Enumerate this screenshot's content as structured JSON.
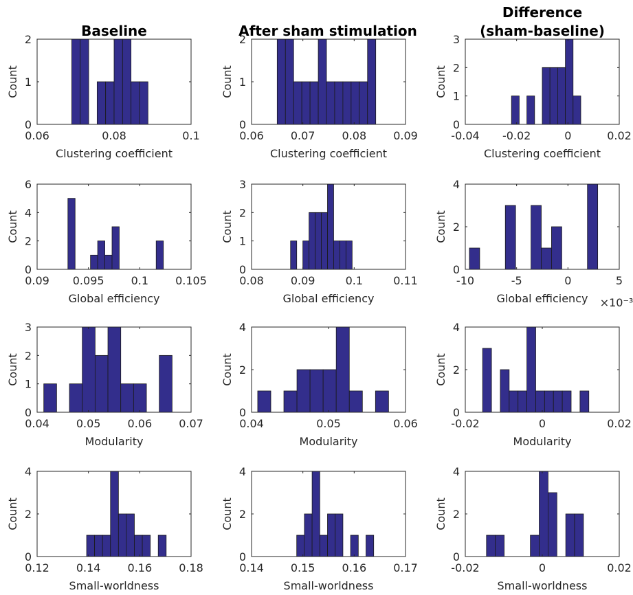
{
  "figure": {
    "bar_color": "#332e8c",
    "titles": [
      "Baseline",
      "After sham stimulation",
      "Difference",
      "(sham-baseline)"
    ]
  },
  "chart_data": [
    {
      "type": "bar",
      "row": 0,
      "col": 0,
      "xlabel": "Clustering coefficient",
      "ylabel": "Count",
      "xlim": [
        0.06,
        0.1
      ],
      "ylim": [
        0,
        2
      ],
      "xticks": [
        "0.06",
        "0.08",
        "0.1"
      ],
      "yticks": [
        "0",
        "1",
        "2"
      ],
      "bins": [
        [
          0.069,
          0.0712,
          2
        ],
        [
          0.0712,
          0.0734,
          2
        ],
        [
          0.0756,
          0.0778,
          1
        ],
        [
          0.0778,
          0.08,
          1
        ],
        [
          0.08,
          0.0822,
          2
        ],
        [
          0.0822,
          0.0844,
          2
        ],
        [
          0.0844,
          0.0866,
          1
        ],
        [
          0.0866,
          0.0888,
          1
        ]
      ]
    },
    {
      "type": "bar",
      "row": 0,
      "col": 1,
      "xlabel": "Clustering coefficient",
      "ylabel": "Count",
      "xlim": [
        0.06,
        0.09
      ],
      "ylim": [
        0,
        2
      ],
      "xticks": [
        "0.06",
        "0.07",
        "0.08",
        "0.09"
      ],
      "yticks": [
        "0",
        "1",
        "2"
      ],
      "bins": [
        [
          0.065,
          0.0666,
          2
        ],
        [
          0.0666,
          0.0682,
          2
        ],
        [
          0.0682,
          0.0698,
          1
        ],
        [
          0.0698,
          0.0714,
          1
        ],
        [
          0.0714,
          0.073,
          1
        ],
        [
          0.073,
          0.0746,
          2
        ],
        [
          0.0746,
          0.0762,
          1
        ],
        [
          0.0762,
          0.0778,
          1
        ],
        [
          0.0778,
          0.0794,
          1
        ],
        [
          0.0794,
          0.081,
          1
        ],
        [
          0.081,
          0.0826,
          1
        ],
        [
          0.0826,
          0.0842,
          2
        ]
      ]
    },
    {
      "type": "bar",
      "row": 0,
      "col": 2,
      "xlabel": "Clustering coefficient",
      "ylabel": "Count",
      "xlim": [
        -0.04,
        0.02
      ],
      "ylim": [
        0,
        3
      ],
      "xticks": [
        "-0.04",
        "-0.02",
        "0",
        "0.02"
      ],
      "yticks": [
        "0",
        "1",
        "2",
        "3"
      ],
      "bins": [
        [
          -0.022,
          -0.019,
          1
        ],
        [
          -0.016,
          -0.013,
          1
        ],
        [
          -0.01,
          -0.007,
          2
        ],
        [
          -0.007,
          -0.004,
          2
        ],
        [
          -0.004,
          -0.001,
          2
        ],
        [
          -0.001,
          0.002,
          3
        ],
        [
          0.002,
          0.005,
          1
        ]
      ]
    },
    {
      "type": "bar",
      "row": 1,
      "col": 0,
      "xlabel": "Global efficiency",
      "ylabel": "Count",
      "xlim": [
        0.09,
        0.105
      ],
      "ylim": [
        0,
        6
      ],
      "xticks": [
        "0.09",
        "0.095",
        "0.1",
        "0.105"
      ],
      "yticks": [
        "0",
        "2",
        "4",
        "6"
      ],
      "bins": [
        [
          0.093,
          0.0937,
          5
        ],
        [
          0.0952,
          0.0959,
          1
        ],
        [
          0.0959,
          0.0966,
          2
        ],
        [
          0.0966,
          0.0973,
          1
        ],
        [
          0.0973,
          0.098,
          3
        ],
        [
          0.1016,
          0.1023,
          2
        ]
      ]
    },
    {
      "type": "bar",
      "row": 1,
      "col": 1,
      "xlabel": "Global efficiency",
      "ylabel": "Count",
      "xlim": [
        0.08,
        0.11
      ],
      "ylim": [
        0,
        3
      ],
      "xticks": [
        "0.08",
        "0.09",
        "0.1",
        "0.11"
      ],
      "yticks": [
        "0",
        "1",
        "2",
        "3"
      ],
      "bins": [
        [
          0.0876,
          0.0888,
          1
        ],
        [
          0.09,
          0.0912,
          1
        ],
        [
          0.0912,
          0.0924,
          2
        ],
        [
          0.0924,
          0.0936,
          2
        ],
        [
          0.0936,
          0.0948,
          2
        ],
        [
          0.0948,
          0.096,
          3
        ],
        [
          0.096,
          0.0972,
          1
        ],
        [
          0.0972,
          0.0984,
          1
        ],
        [
          0.0984,
          0.0996,
          1
        ]
      ]
    },
    {
      "type": "bar",
      "row": 1,
      "col": 2,
      "xlabel": "Global efficiency",
      "ylabel": "Count",
      "xlim": [
        -10,
        5
      ],
      "ylim": [
        0,
        4
      ],
      "xticks": [
        "-10",
        "-5",
        "0",
        "5"
      ],
      "yticks": [
        "0",
        "2",
        "4"
      ],
      "exponent": "×10⁻³",
      "bins": [
        [
          -9.6,
          -8.6,
          1
        ],
        [
          -6.1,
          -5.1,
          3
        ],
        [
          -3.6,
          -2.6,
          3
        ],
        [
          -2.6,
          -1.6,
          1
        ],
        [
          -1.6,
          -0.6,
          2
        ],
        [
          1.9,
          2.9,
          4
        ]
      ]
    },
    {
      "type": "bar",
      "row": 2,
      "col": 0,
      "xlabel": "Modularity",
      "ylabel": "Count",
      "xlim": [
        0.04,
        0.07
      ],
      "ylim": [
        0,
        3
      ],
      "xticks": [
        "0.04",
        "0.05",
        "0.06",
        "0.07"
      ],
      "yticks": [
        "0",
        "1",
        "2",
        "3"
      ],
      "bins": [
        [
          0.0413,
          0.0438,
          1
        ],
        [
          0.0463,
          0.0488,
          1
        ],
        [
          0.0488,
          0.0513,
          3
        ],
        [
          0.0513,
          0.0538,
          2
        ],
        [
          0.0538,
          0.0563,
          3
        ],
        [
          0.0563,
          0.0588,
          1
        ],
        [
          0.0588,
          0.0613,
          1
        ],
        [
          0.0638,
          0.0663,
          2
        ]
      ]
    },
    {
      "type": "bar",
      "row": 2,
      "col": 1,
      "xlabel": "Modularity",
      "ylabel": "Count",
      "xlim": [
        0.04,
        0.06
      ],
      "ylim": [
        0,
        4
      ],
      "xticks": [
        "0.04",
        "0.05",
        "0.06"
      ],
      "yticks": [
        "0",
        "2",
        "4"
      ],
      "bins": [
        [
          0.0408,
          0.0425,
          1
        ],
        [
          0.0442,
          0.0459,
          1
        ],
        [
          0.0459,
          0.0476,
          2
        ],
        [
          0.0476,
          0.0493,
          2
        ],
        [
          0.0493,
          0.051,
          2
        ],
        [
          0.051,
          0.0527,
          4
        ],
        [
          0.0527,
          0.0544,
          1
        ],
        [
          0.0561,
          0.0578,
          1
        ]
      ]
    },
    {
      "type": "bar",
      "row": 2,
      "col": 2,
      "xlabel": "Modularity",
      "ylabel": "Count",
      "xlim": [
        -0.02,
        0.02
      ],
      "ylim": [
        0,
        4
      ],
      "xticks": [
        "-0.02",
        "0",
        "0.02"
      ],
      "yticks": [
        "0",
        "2",
        "4"
      ],
      "bins": [
        [
          -0.0155,
          -0.0132,
          3
        ],
        [
          -0.0109,
          -0.0086,
          2
        ],
        [
          -0.0086,
          -0.0063,
          1
        ],
        [
          -0.0063,
          -0.004,
          1
        ],
        [
          -0.004,
          -0.0017,
          4
        ],
        [
          -0.0017,
          0.0006,
          1
        ],
        [
          0.0006,
          0.0029,
          1
        ],
        [
          0.0029,
          0.0052,
          1
        ],
        [
          0.0052,
          0.0075,
          1
        ],
        [
          0.0098,
          0.0121,
          1
        ]
      ]
    },
    {
      "type": "bar",
      "row": 3,
      "col": 0,
      "xlabel": "Small-worldness",
      "ylabel": "Count",
      "xlim": [
        0.12,
        0.18
      ],
      "ylim": [
        0,
        4
      ],
      "xticks": [
        "0.12",
        "0.14",
        "0.16",
        "0.18"
      ],
      "yticks": [
        "0",
        "2",
        "4"
      ],
      "bins": [
        [
          0.1393,
          0.1424,
          1
        ],
        [
          0.1424,
          0.1455,
          1
        ],
        [
          0.1455,
          0.1486,
          1
        ],
        [
          0.1486,
          0.1517,
          4
        ],
        [
          0.1517,
          0.1548,
          2
        ],
        [
          0.1548,
          0.1579,
          2
        ],
        [
          0.1579,
          0.161,
          1
        ],
        [
          0.161,
          0.1641,
          1
        ],
        [
          0.1672,
          0.1703,
          1
        ]
      ]
    },
    {
      "type": "bar",
      "row": 3,
      "col": 1,
      "xlabel": "Small-worldness",
      "ylabel": "Count",
      "xlim": [
        0.14,
        0.17
      ],
      "ylim": [
        0,
        4
      ],
      "xticks": [
        "0.14",
        "0.15",
        "0.16",
        "0.17"
      ],
      "yticks": [
        "0",
        "2",
        "4"
      ],
      "bins": [
        [
          0.1488,
          0.1503,
          1
        ],
        [
          0.1503,
          0.1518,
          2
        ],
        [
          0.1518,
          0.1533,
          4
        ],
        [
          0.1533,
          0.1548,
          1
        ],
        [
          0.1548,
          0.1563,
          2
        ],
        [
          0.1563,
          0.1578,
          2
        ],
        [
          0.1593,
          0.1608,
          1
        ],
        [
          0.1623,
          0.1638,
          1
        ]
      ]
    },
    {
      "type": "bar",
      "row": 3,
      "col": 2,
      "xlabel": "Small-worldness",
      "ylabel": "Count",
      "xlim": [
        -0.02,
        0.02
      ],
      "ylim": [
        0,
        4
      ],
      "xticks": [
        "-0.02",
        "0",
        "0.02"
      ],
      "yticks": [
        "0",
        "2",
        "4"
      ],
      "bins": [
        [
          -0.0145,
          -0.0122,
          1
        ],
        [
          -0.0122,
          -0.0099,
          1
        ],
        [
          -0.0031,
          -0.0008,
          1
        ],
        [
          -0.0008,
          0.0015,
          4
        ],
        [
          0.0015,
          0.0038,
          3
        ],
        [
          0.0061,
          0.0084,
          2
        ],
        [
          0.0084,
          0.0107,
          2
        ]
      ]
    }
  ]
}
